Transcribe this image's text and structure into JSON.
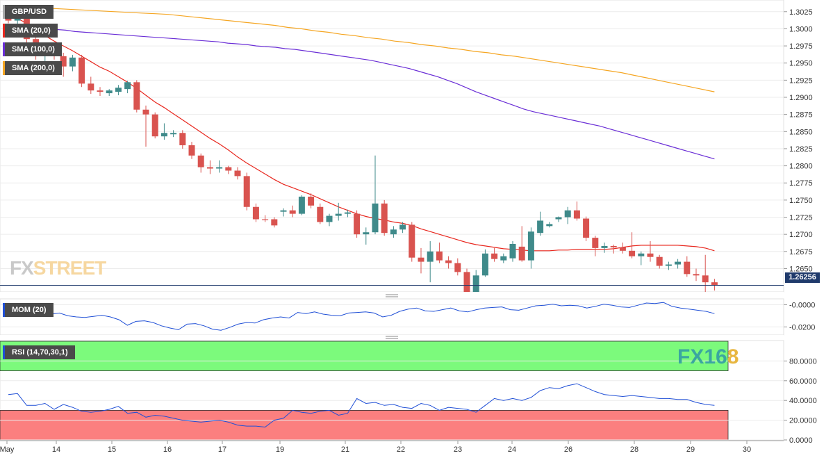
{
  "chart_data": {
    "type": "candlestick",
    "symbol": "GBP/USD",
    "price_axis": {
      "ticks": [
        "1.3025",
        "1.3000",
        "1.2975",
        "1.2950",
        "1.2925",
        "1.2900",
        "1.2875",
        "1.2850",
        "1.2825",
        "1.2800",
        "1.2775",
        "1.2750",
        "1.2725",
        "1.2700",
        "1.2675",
        "1.2650"
      ],
      "range": [
        1.2618,
        1.304
      ],
      "last_price": "1.26256"
    },
    "x_axis": {
      "labels": [
        "May",
        "14",
        "15",
        "16",
        "17",
        "19",
        "21",
        "22",
        "23",
        "24",
        "26",
        "28",
        "29",
        "30"
      ]
    },
    "candles": [
      {
        "o": 1.3018,
        "h": 1.303,
        "l": 1.3008,
        "c": 1.3012
      },
      {
        "o": 1.3012,
        "h": 1.3022,
        "l": 1.3002,
        "c": 1.3015
      },
      {
        "o": 1.3015,
        "h": 1.302,
        "l": 1.2975,
        "c": 1.2985
      },
      {
        "o": 1.2985,
        "h": 1.2998,
        "l": 1.2955,
        "c": 1.2962
      },
      {
        "o": 1.2962,
        "h": 1.2978,
        "l": 1.295,
        "c": 1.2968
      },
      {
        "o": 1.2968,
        "h": 1.2972,
        "l": 1.2955,
        "c": 1.296
      },
      {
        "o": 1.296,
        "h": 1.2965,
        "l": 1.293,
        "c": 1.2945
      },
      {
        "o": 1.2945,
        "h": 1.2962,
        "l": 1.2938,
        "c": 1.2958
      },
      {
        "o": 1.2958,
        "h": 1.2962,
        "l": 1.2915,
        "c": 1.292
      },
      {
        "o": 1.292,
        "h": 1.293,
        "l": 1.2905,
        "c": 1.291
      },
      {
        "o": 1.291,
        "h": 1.2915,
        "l": 1.2902,
        "c": 1.2908
      },
      {
        "o": 1.2906,
        "h": 1.2912,
        "l": 1.2902,
        "c": 1.291
      },
      {
        "o": 1.2908,
        "h": 1.2918,
        "l": 1.2903,
        "c": 1.2914
      },
      {
        "o": 1.2912,
        "h": 1.2924,
        "l": 1.2906,
        "c": 1.2922
      },
      {
        "o": 1.2922,
        "h": 1.2925,
        "l": 1.2878,
        "c": 1.2882
      },
      {
        "o": 1.2882,
        "h": 1.2888,
        "l": 1.2828,
        "c": 1.2875
      },
      {
        "o": 1.2875,
        "h": 1.2878,
        "l": 1.284,
        "c": 1.2843
      },
      {
        "o": 1.2843,
        "h": 1.2862,
        "l": 1.2838,
        "c": 1.2848
      },
      {
        "o": 1.2846,
        "h": 1.2852,
        "l": 1.2842,
        "c": 1.2848
      },
      {
        "o": 1.2848,
        "h": 1.2852,
        "l": 1.2825,
        "c": 1.283
      },
      {
        "o": 1.283,
        "h": 1.2835,
        "l": 1.281,
        "c": 1.2815
      },
      {
        "o": 1.2815,
        "h": 1.2818,
        "l": 1.279,
        "c": 1.2798
      },
      {
        "o": 1.2798,
        "h": 1.2808,
        "l": 1.2788,
        "c": 1.2796
      },
      {
        "o": 1.2796,
        "h": 1.2808,
        "l": 1.279,
        "c": 1.2798
      },
      {
        "o": 1.2798,
        "h": 1.28,
        "l": 1.2788,
        "c": 1.2793
      },
      {
        "o": 1.2793,
        "h": 1.2798,
        "l": 1.278,
        "c": 1.2785
      },
      {
        "o": 1.2785,
        "h": 1.279,
        "l": 1.2735,
        "c": 1.274
      },
      {
        "o": 1.274,
        "h": 1.2745,
        "l": 1.2718,
        "c": 1.2722
      },
      {
        "o": 1.2722,
        "h": 1.2728,
        "l": 1.2718,
        "c": 1.2721
      },
      {
        "o": 1.2722,
        "h": 1.2725,
        "l": 1.271,
        "c": 1.2713
      },
      {
        "o": 1.2733,
        "h": 1.2738,
        "l": 1.2726,
        "c": 1.2735
      },
      {
        "o": 1.2735,
        "h": 1.2742,
        "l": 1.2725,
        "c": 1.273
      },
      {
        "o": 1.273,
        "h": 1.2757,
        "l": 1.2728,
        "c": 1.2755
      },
      {
        "o": 1.2755,
        "h": 1.276,
        "l": 1.2738,
        "c": 1.2742
      },
      {
        "o": 1.274,
        "h": 1.2745,
        "l": 1.2715,
        "c": 1.2718
      },
      {
        "o": 1.2718,
        "h": 1.273,
        "l": 1.2712,
        "c": 1.2727
      },
      {
        "o": 1.2727,
        "h": 1.2746,
        "l": 1.272,
        "c": 1.273
      },
      {
        "o": 1.273,
        "h": 1.2736,
        "l": 1.2725,
        "c": 1.2732
      },
      {
        "o": 1.273,
        "h": 1.2735,
        "l": 1.2695,
        "c": 1.27
      },
      {
        "o": 1.27,
        "h": 1.271,
        "l": 1.2685,
        "c": 1.2703
      },
      {
        "o": 1.2703,
        "h": 1.2815,
        "l": 1.27,
        "c": 1.2745
      },
      {
        "o": 1.2745,
        "h": 1.275,
        "l": 1.2698,
        "c": 1.2702
      },
      {
        "o": 1.27,
        "h": 1.2712,
        "l": 1.2695,
        "c": 1.2707
      },
      {
        "o": 1.2707,
        "h": 1.2718,
        "l": 1.2702,
        "c": 1.2714
      },
      {
        "o": 1.2714,
        "h": 1.2718,
        "l": 1.266,
        "c": 1.2666
      },
      {
        "o": 1.2666,
        "h": 1.268,
        "l": 1.2643,
        "c": 1.266
      },
      {
        "o": 1.266,
        "h": 1.269,
        "l": 1.263,
        "c": 1.2675
      },
      {
        "o": 1.2675,
        "h": 1.2688,
        "l": 1.2658,
        "c": 1.2662
      },
      {
        "o": 1.2662,
        "h": 1.2668,
        "l": 1.265,
        "c": 1.2658
      },
      {
        "o": 1.2658,
        "h": 1.2665,
        "l": 1.264,
        "c": 1.2645
      },
      {
        "o": 1.2645,
        "h": 1.265,
        "l": 1.261,
        "c": 1.2613
      },
      {
        "o": 1.2613,
        "h": 1.2648,
        "l": 1.261,
        "c": 1.264
      },
      {
        "o": 1.264,
        "h": 1.2678,
        "l": 1.2638,
        "c": 1.2672
      },
      {
        "o": 1.2672,
        "h": 1.268,
        "l": 1.266,
        "c": 1.2664
      },
      {
        "o": 1.2662,
        "h": 1.2672,
        "l": 1.2658,
        "c": 1.2668
      },
      {
        "o": 1.2665,
        "h": 1.269,
        "l": 1.266,
        "c": 1.2686
      },
      {
        "o": 1.2682,
        "h": 1.2712,
        "l": 1.266,
        "c": 1.2662
      },
      {
        "o": 1.2662,
        "h": 1.271,
        "l": 1.265,
        "c": 1.2704
      },
      {
        "o": 1.2702,
        "h": 1.2733,
        "l": 1.2698,
        "c": 1.272
      },
      {
        "o": 1.2712,
        "h": 1.2718,
        "l": 1.271,
        "c": 1.2715
      },
      {
        "o": 1.2722,
        "h": 1.2726,
        "l": 1.2718,
        "c": 1.2725
      },
      {
        "o": 1.2725,
        "h": 1.274,
        "l": 1.2715,
        "c": 1.2735
      },
      {
        "o": 1.2735,
        "h": 1.2748,
        "l": 1.272,
        "c": 1.2723
      },
      {
        "o": 1.2723,
        "h": 1.2726,
        "l": 1.269,
        "c": 1.2695
      },
      {
        "o": 1.2695,
        "h": 1.2698,
        "l": 1.2668,
        "c": 1.268
      },
      {
        "o": 1.268,
        "h": 1.2688,
        "l": 1.2673,
        "c": 1.2683
      },
      {
        "o": 1.2683,
        "h": 1.2685,
        "l": 1.2672,
        "c": 1.2681
      },
      {
        "o": 1.2681,
        "h": 1.2688,
        "l": 1.2672,
        "c": 1.2676
      },
      {
        "o": 1.2676,
        "h": 1.2703,
        "l": 1.2665,
        "c": 1.2668
      },
      {
        "o": 1.2668,
        "h": 1.2675,
        "l": 1.2655,
        "c": 1.2672
      },
      {
        "o": 1.2672,
        "h": 1.269,
        "l": 1.266,
        "c": 1.2667
      },
      {
        "o": 1.2667,
        "h": 1.267,
        "l": 1.265,
        "c": 1.2654
      },
      {
        "o": 1.2654,
        "h": 1.266,
        "l": 1.2648,
        "c": 1.2656
      },
      {
        "o": 1.2656,
        "h": 1.2664,
        "l": 1.265,
        "c": 1.266
      },
      {
        "o": 1.266,
        "h": 1.2668,
        "l": 1.2638,
        "c": 1.2642
      },
      {
        "o": 1.2642,
        "h": 1.265,
        "l": 1.2632,
        "c": 1.264
      },
      {
        "o": 1.264,
        "h": 1.267,
        "l": 1.2615,
        "c": 1.263
      },
      {
        "o": 1.263,
        "h": 1.2635,
        "l": 1.2618,
        "c": 1.2626
      }
    ],
    "overlays": [
      {
        "name": "SMA (20,0)",
        "color": "#e8271e",
        "values": [
          1.302,
          1.3015,
          1.3008,
          1.3,
          1.299,
          1.2982,
          1.2975,
          1.2968,
          1.296,
          1.2952,
          1.2944,
          1.2938,
          1.293,
          1.2922,
          1.2913,
          1.2903,
          1.2893,
          1.2885,
          1.2876,
          1.2867,
          1.2858,
          1.2849,
          1.284,
          1.2832,
          1.2823,
          1.2813,
          1.2804,
          1.2796,
          1.2788,
          1.278,
          1.2773,
          1.2768,
          1.2763,
          1.2758,
          1.2752,
          1.2746,
          1.274,
          1.2735,
          1.273,
          1.2726,
          1.2723,
          1.2721,
          1.2718,
          1.2716,
          1.2713,
          1.2708,
          1.2704,
          1.27,
          1.2696,
          1.2692,
          1.2688,
          1.2685,
          1.2683,
          1.2681,
          1.2679,
          1.2678,
          1.2677,
          1.2676,
          1.2676,
          1.2676,
          1.2677,
          1.2677,
          1.2678,
          1.2678,
          1.2678,
          1.2678,
          1.2679,
          1.2681,
          1.2683,
          1.2684,
          1.2684,
          1.2684,
          1.2684,
          1.2684,
          1.2683,
          1.2682,
          1.268,
          1.2676
        ]
      },
      {
        "name": "SMA (100,0)",
        "color": "#6a2ed6",
        "values": [
          1.3005,
          1.3004,
          1.3003,
          1.3002,
          1.3,
          1.2999,
          1.2998,
          1.2996,
          1.2995,
          1.2994,
          1.2993,
          1.2992,
          1.2991,
          1.299,
          1.2989,
          1.2988,
          1.2987,
          1.2986,
          1.2985,
          1.2984,
          1.2983,
          1.2982,
          1.2981,
          1.2979,
          1.2978,
          1.2977,
          1.2975,
          1.2974,
          1.2973,
          1.2971,
          1.297,
          1.2968,
          1.2966,
          1.2964,
          1.2962,
          1.296,
          1.2958,
          1.2956,
          1.2954,
          1.2951,
          1.2948,
          1.2945,
          1.2942,
          1.2938,
          1.2934,
          1.293,
          1.2925,
          1.292,
          1.2914,
          1.2908,
          1.2903,
          1.2898,
          1.2893,
          1.2888,
          1.2883,
          1.2879,
          1.2876,
          1.2873,
          1.287,
          1.2867,
          1.2864,
          1.2861,
          1.2858,
          1.2854,
          1.285,
          1.2846,
          1.2842,
          1.2838,
          1.2834,
          1.283,
          1.2826,
          1.2822,
          1.2818,
          1.2814,
          1.281
        ]
      },
      {
        "name": "SMA (200,0)",
        "color": "#f5a623",
        "values": [
          1.3033,
          1.3032,
          1.3031,
          1.303,
          1.3029,
          1.3028,
          1.3027,
          1.3026,
          1.3025,
          1.3024,
          1.3023,
          1.3022,
          1.3021,
          1.3019,
          1.3017,
          1.3015,
          1.3013,
          1.3011,
          1.3009,
          1.3007,
          1.3005,
          1.3002,
          1.3,
          1.2997,
          1.2995,
          1.2992,
          1.299,
          1.2987,
          1.2985,
          1.2982,
          1.298,
          1.2977,
          1.2975,
          1.2972,
          1.297,
          1.2967,
          1.2965,
          1.2962,
          1.296,
          1.2957,
          1.2954,
          1.2951,
          1.2948,
          1.2945,
          1.2942,
          1.2939,
          1.2936,
          1.2932,
          1.2928,
          1.2924,
          1.292,
          1.2916,
          1.2912,
          1.2908
        ]
      }
    ],
    "momentum": {
      "name": "MOM (20)",
      "ticks": [
        "-0.0000",
        "-0.0200"
      ],
      "range": [
        -0.026,
        0.004
      ],
      "color": "#1f4fd6",
      "values": [
        -0.0055,
        -0.006,
        -0.0055,
        -0.007,
        -0.0075,
        -0.0085,
        -0.0075,
        -0.01,
        -0.011,
        -0.0115,
        -0.0105,
        -0.0095,
        -0.011,
        -0.0135,
        -0.0185,
        -0.015,
        -0.0145,
        -0.016,
        -0.019,
        -0.021,
        -0.0225,
        -0.0175,
        -0.017,
        -0.019,
        -0.022,
        -0.023,
        -0.0205,
        -0.0175,
        -0.016,
        -0.0165,
        -0.0135,
        -0.012,
        -0.011,
        -0.012,
        -0.007,
        -0.008,
        -0.0065,
        -0.0085,
        -0.0095,
        -0.01,
        -0.0075,
        -0.007,
        -0.0065,
        -0.0075,
        -0.011,
        -0.0095,
        -0.006,
        -0.004,
        -0.003,
        -0.0055,
        -0.006,
        -0.0045,
        -0.003,
        -0.0055,
        -0.0065,
        -0.0045,
        -0.003,
        -0.0025,
        -0.002,
        -0.0045,
        -0.005,
        -0.003,
        -0.001,
        -0.0005,
        0.0005,
        -0.001,
        -0.0005,
        -0.001,
        -0.003,
        -0.0015,
        0.0005,
        -0.0005,
        -0.002,
        -0.0025,
        -0.0005,
        0.0015,
        0.001,
        0.002,
        -0.0015,
        -0.003,
        -0.004,
        -0.005,
        -0.006,
        -0.008
      ]
    },
    "rsi": {
      "name": "RSI (14,70,30,1)",
      "ticks": [
        "80.0000",
        "60.0000",
        "40.0000",
        "20.0000",
        "0.0000"
      ],
      "range": [
        0,
        100
      ],
      "overbought": 70,
      "oversold": 30,
      "color": "#1f4fd6",
      "values": [
        46,
        47,
        35,
        35,
        37,
        31,
        36,
        33,
        29,
        28,
        29,
        31,
        34,
        27,
        28,
        23,
        25,
        24,
        22,
        20,
        19,
        18,
        19,
        20,
        18,
        15,
        14,
        14,
        13,
        20,
        22,
        30,
        28,
        27,
        29,
        30,
        25,
        27,
        42,
        37,
        38,
        35,
        36,
        33,
        32,
        37,
        35,
        30,
        33,
        32,
        31,
        28,
        35,
        42,
        40,
        42,
        40,
        43,
        50,
        53,
        52,
        55,
        57,
        53,
        49,
        46,
        45,
        44,
        45,
        44,
        43,
        42,
        42,
        41,
        41,
        38,
        36,
        35
      ]
    },
    "watermarks": {
      "left": {
        "part1": "FX",
        "part2": "STREET"
      },
      "right": {
        "part1": "FX16",
        "part2": "8"
      }
    }
  }
}
